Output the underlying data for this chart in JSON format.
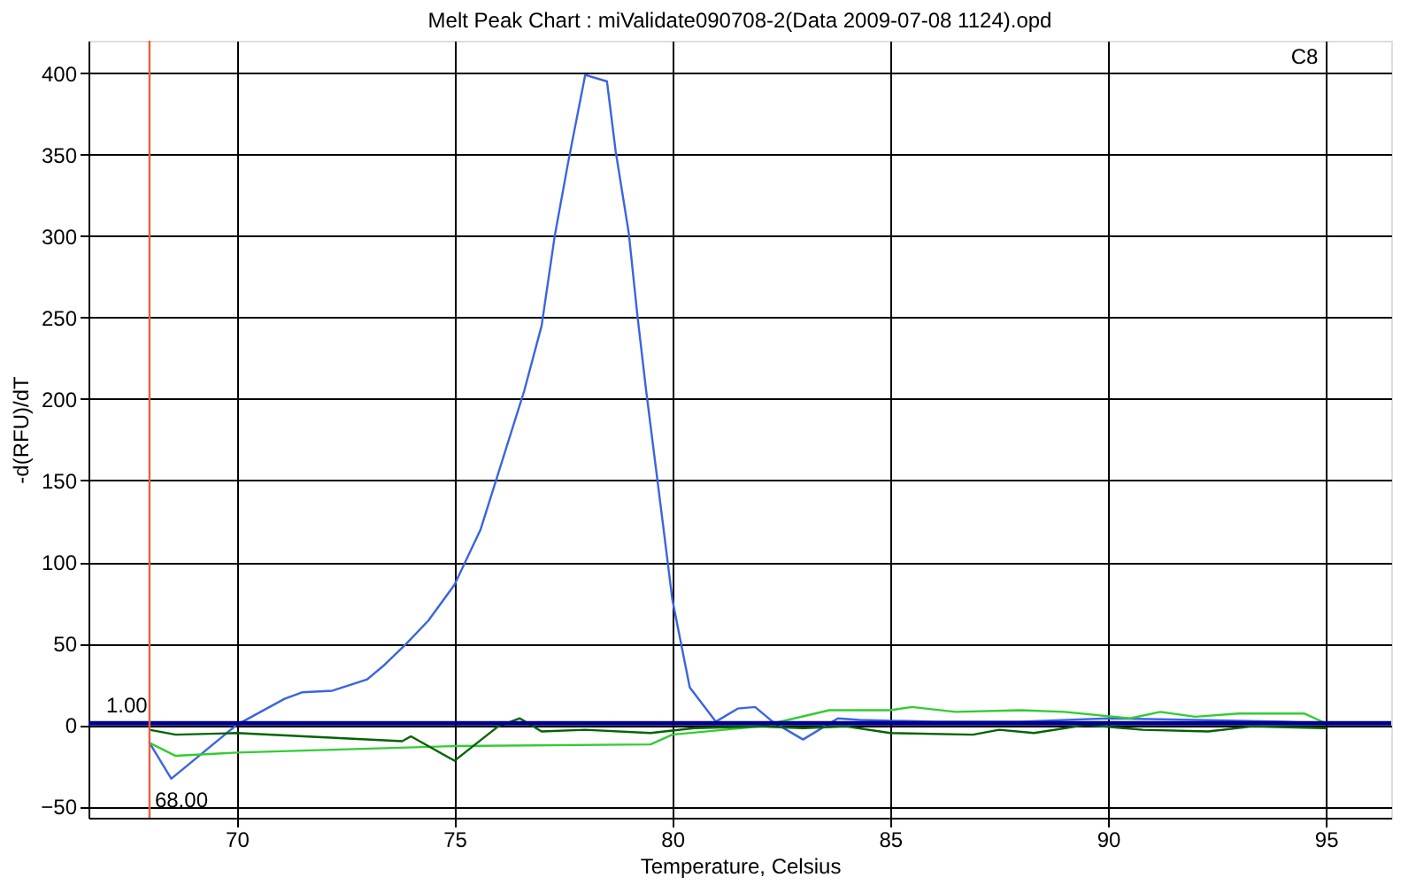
{
  "chart_data": {
    "type": "line",
    "title": "Melt Peak Chart : miValidate090708-2(Data 2009-07-08 1124).opd",
    "xlabel": "Temperature, Celsius",
    "ylabel": "-d(RFU)/dT",
    "xlim": [
      66.6,
      96.5
    ],
    "ylim": [
      -57,
      420
    ],
    "xticks": [
      70,
      75,
      80,
      85,
      90,
      95
    ],
    "yticks": [
      -50,
      0,
      50,
      100,
      150,
      200,
      250,
      300,
      350,
      400
    ],
    "grid": true,
    "marker": "none",
    "line_style": "solid",
    "annotations": [
      "C8"
    ],
    "ref_lines": [
      {
        "axis": "y",
        "value": 1,
        "label": "1.00",
        "color": "#00008b"
      },
      {
        "axis": "x",
        "value": 68,
        "label": "68.00",
        "color": "#e8603c"
      }
    ],
    "series": [
      {
        "color": "#3a64e0",
        "x": [
          68,
          68.5,
          70,
          71.1,
          71.5,
          72.2,
          73,
          73.4,
          73.9,
          74.4,
          75,
          75.6,
          76.6,
          77,
          77.3,
          77.6,
          78,
          78.5,
          78.7,
          79,
          79.2,
          79.4,
          79.8,
          80,
          80.4,
          81,
          81.5,
          81.9,
          82.3,
          83,
          83.8,
          84.3,
          86,
          88,
          90,
          92,
          94,
          94.9
        ],
        "values": [
          -11,
          -33,
          0,
          16,
          20,
          21,
          28,
          37,
          50,
          64,
          86,
          120,
          205,
          245,
          300,
          344,
          399,
          395,
          352,
          302,
          251,
          205,
          120,
          77,
          23,
          2,
          10,
          11,
          2,
          -9,
          4,
          3,
          2,
          2,
          4,
          3,
          2,
          1
        ]
      },
      {
        "color": "#33cc33",
        "x": [
          68,
          68.6,
          70,
          75,
          79.5,
          80,
          82,
          82.8,
          83.6,
          85,
          85.5,
          86.5,
          88,
          89,
          90.5,
          91.2,
          92,
          93,
          94.5,
          95
        ],
        "values": [
          -11,
          -19,
          -17,
          -13,
          -12,
          -6,
          -1,
          4,
          9,
          9,
          11,
          8,
          9,
          8,
          4,
          8,
          5,
          7,
          7,
          1
        ]
      },
      {
        "color": "#006400",
        "x": [
          68,
          68.6,
          70,
          73.8,
          74,
          75,
          76,
          76.5,
          77,
          78,
          79.5,
          80.5,
          82,
          83,
          84,
          85,
          86.9,
          87.5,
          88.3,
          89.5,
          90.8,
          92.3,
          93.3,
          95
        ],
        "values": [
          -3,
          -6,
          -5,
          -10,
          -7,
          -22,
          -1,
          4,
          -4,
          -3,
          -5,
          -2,
          -1,
          -2,
          -1,
          -5,
          -6,
          -3,
          -5,
          0,
          -3,
          -4,
          -1,
          -2
        ]
      }
    ]
  }
}
